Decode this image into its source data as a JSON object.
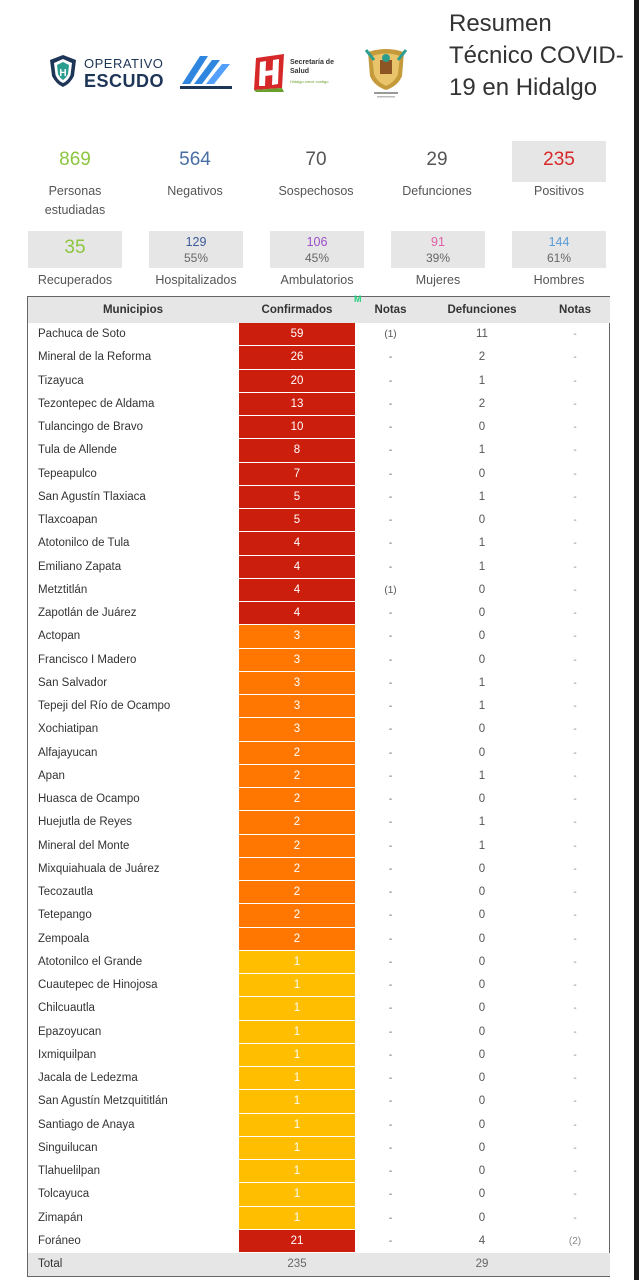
{
  "header": {
    "title": "Resumen Técnico COVID-19 en Hidalgo",
    "logos": {
      "escudo_line1": "OPERATIVO",
      "escudo_line2": "ESCUDO",
      "salud_line1": "Secretaría de Salud",
      "salud_line2": "Hidalgo crece contigo"
    }
  },
  "stats": [
    {
      "value": "869",
      "label": "Personas estudiadas",
      "color": "#8dc63f"
    },
    {
      "value": "564",
      "label": "Negativos",
      "color": "#4a6fa5"
    },
    {
      "value": "70",
      "label": "Sospechosos",
      "color": "#555555"
    },
    {
      "value": "29",
      "label": "Defunciones",
      "color": "#555555"
    },
    {
      "value": "235",
      "label": "Positivos",
      "color": "#d62828"
    }
  ],
  "substats": [
    {
      "value": "35",
      "percent": "",
      "label": "Recuperados",
      "color": "#8dc63f"
    },
    {
      "value": "129",
      "percent": "55%",
      "label": "Hospitalizados",
      "color": "#3d5a99"
    },
    {
      "value": "106",
      "percent": "45%",
      "label": "Ambulatorios",
      "color": "#9b4dca"
    },
    {
      "value": "91",
      "percent": "39%",
      "label": "Mujeres",
      "color": "#e05fa8"
    },
    {
      "value": "144",
      "percent": "61%",
      "label": "Hombres",
      "color": "#5b9bd5"
    }
  ],
  "table": {
    "headers": {
      "municipio": "Municipios",
      "confirmados": "Confirmados",
      "notas1": "Notas",
      "defunciones": "Defunciones",
      "notas2": "Notas"
    },
    "header_mark": "M",
    "colors": {
      "red": "#cc1e0c",
      "orange": "#ff7700",
      "yellow": "#ffbf00"
    },
    "rows": [
      {
        "municipio": "Pachuca de Soto",
        "confirmados": 59,
        "notas1": "(1)",
        "defunciones": "11",
        "notas2": "-"
      },
      {
        "municipio": "Mineral de la Reforma",
        "confirmados": 26,
        "notas1": "-",
        "defunciones": "2",
        "notas2": "-"
      },
      {
        "municipio": "Tizayuca",
        "confirmados": 20,
        "notas1": "-",
        "defunciones": "1",
        "notas2": "-"
      },
      {
        "municipio": "Tezontepec de Aldama",
        "confirmados": 13,
        "notas1": "-",
        "defunciones": "2",
        "notas2": "-"
      },
      {
        "municipio": "Tulancingo de Bravo",
        "confirmados": 10,
        "notas1": "-",
        "defunciones": "0",
        "notas2": "-"
      },
      {
        "municipio": "Tula de Allende",
        "confirmados": 8,
        "notas1": "-",
        "defunciones": "1",
        "notas2": "-"
      },
      {
        "municipio": "Tepeapulco",
        "confirmados": 7,
        "notas1": "-",
        "defunciones": "0",
        "notas2": "-"
      },
      {
        "municipio": "San Agustín Tlaxiaca",
        "confirmados": 5,
        "notas1": "-",
        "defunciones": "1",
        "notas2": "-"
      },
      {
        "municipio": "Tlaxcoapan",
        "confirmados": 5,
        "notas1": "-",
        "defunciones": "0",
        "notas2": "-"
      },
      {
        "municipio": "Atotonilco de Tula",
        "confirmados": 4,
        "notas1": "-",
        "defunciones": "1",
        "notas2": "-"
      },
      {
        "municipio": "Emiliano Zapata",
        "confirmados": 4,
        "notas1": "-",
        "defunciones": "1",
        "notas2": "-"
      },
      {
        "municipio": "Metztitlán",
        "confirmados": 4,
        "notas1": "(1)",
        "defunciones": "0",
        "notas2": "-"
      },
      {
        "municipio": "Zapotlán de Juárez",
        "confirmados": 4,
        "notas1": "-",
        "defunciones": "0",
        "notas2": "-"
      },
      {
        "municipio": "Actopan",
        "confirmados": 3,
        "notas1": "-",
        "defunciones": "0",
        "notas2": "-"
      },
      {
        "municipio": "Francisco I Madero",
        "confirmados": 3,
        "notas1": "-",
        "defunciones": "0",
        "notas2": "-"
      },
      {
        "municipio": "San Salvador",
        "confirmados": 3,
        "notas1": "-",
        "defunciones": "1",
        "notas2": "-"
      },
      {
        "municipio": "Tepeji del Río de Ocampo",
        "confirmados": 3,
        "notas1": "-",
        "defunciones": "1",
        "notas2": "-"
      },
      {
        "municipio": "Xochiatipan",
        "confirmados": 3,
        "notas1": "-",
        "defunciones": "0",
        "notas2": "-"
      },
      {
        "municipio": "Alfajayucan",
        "confirmados": 2,
        "notas1": "-",
        "defunciones": "0",
        "notas2": "-"
      },
      {
        "municipio": "Apan",
        "confirmados": 2,
        "notas1": "-",
        "defunciones": "1",
        "notas2": "-"
      },
      {
        "municipio": "Huasca de Ocampo",
        "confirmados": 2,
        "notas1": "-",
        "defunciones": "0",
        "notas2": "-"
      },
      {
        "municipio": "Huejutla de Reyes",
        "confirmados": 2,
        "notas1": "-",
        "defunciones": "1",
        "notas2": "-"
      },
      {
        "municipio": "Mineral del Monte",
        "confirmados": 2,
        "notas1": "-",
        "defunciones": "1",
        "notas2": "-"
      },
      {
        "municipio": "Mixquiahuala de Juárez",
        "confirmados": 2,
        "notas1": "-",
        "defunciones": "0",
        "notas2": "-"
      },
      {
        "municipio": "Tecozautla",
        "confirmados": 2,
        "notas1": "-",
        "defunciones": "0",
        "notas2": "-"
      },
      {
        "municipio": "Tetepango",
        "confirmados": 2,
        "notas1": "-",
        "defunciones": "0",
        "notas2": "-"
      },
      {
        "municipio": "Zempoala",
        "confirmados": 2,
        "notas1": "-",
        "defunciones": "0",
        "notas2": "-"
      },
      {
        "municipio": "Atotonilco el Grande",
        "confirmados": 1,
        "notas1": "-",
        "defunciones": "0",
        "notas2": "-"
      },
      {
        "municipio": "Cuautepec de Hinojosa",
        "confirmados": 1,
        "notas1": "-",
        "defunciones": "0",
        "notas2": "-"
      },
      {
        "municipio": "Chilcuautla",
        "confirmados": 1,
        "notas1": "-",
        "defunciones": "0",
        "notas2": "-"
      },
      {
        "municipio": "Epazoyucan",
        "confirmados": 1,
        "notas1": "-",
        "defunciones": "0",
        "notas2": "-"
      },
      {
        "municipio": "Ixmiquilpan",
        "confirmados": 1,
        "notas1": "-",
        "defunciones": "0",
        "notas2": "-"
      },
      {
        "municipio": "Jacala de Ledezma",
        "confirmados": 1,
        "notas1": "-",
        "defunciones": "0",
        "notas2": "-"
      },
      {
        "municipio": "San Agustín Metzquititlán",
        "confirmados": 1,
        "notas1": "-",
        "defunciones": "0",
        "notas2": "-"
      },
      {
        "municipio": "Santiago de Anaya",
        "confirmados": 1,
        "notas1": "-",
        "defunciones": "0",
        "notas2": "-"
      },
      {
        "municipio": "Singuilucan",
        "confirmados": 1,
        "notas1": "-",
        "defunciones": "0",
        "notas2": "-"
      },
      {
        "municipio": "Tlahuelilpan",
        "confirmados": 1,
        "notas1": "-",
        "defunciones": "0",
        "notas2": "-"
      },
      {
        "municipio": "Tolcayuca",
        "confirmados": 1,
        "notas1": "-",
        "defunciones": "0",
        "notas2": "-"
      },
      {
        "municipio": "Zimapán",
        "confirmados": 1,
        "notas1": "-",
        "defunciones": "0",
        "notas2": "-"
      },
      {
        "municipio": "Foráneo",
        "confirmados": 21,
        "notas1": "-",
        "defunciones": "4",
        "notas2": "(2)"
      }
    ],
    "total": {
      "label": "Total",
      "confirmados": "235",
      "defunciones": "29"
    }
  }
}
